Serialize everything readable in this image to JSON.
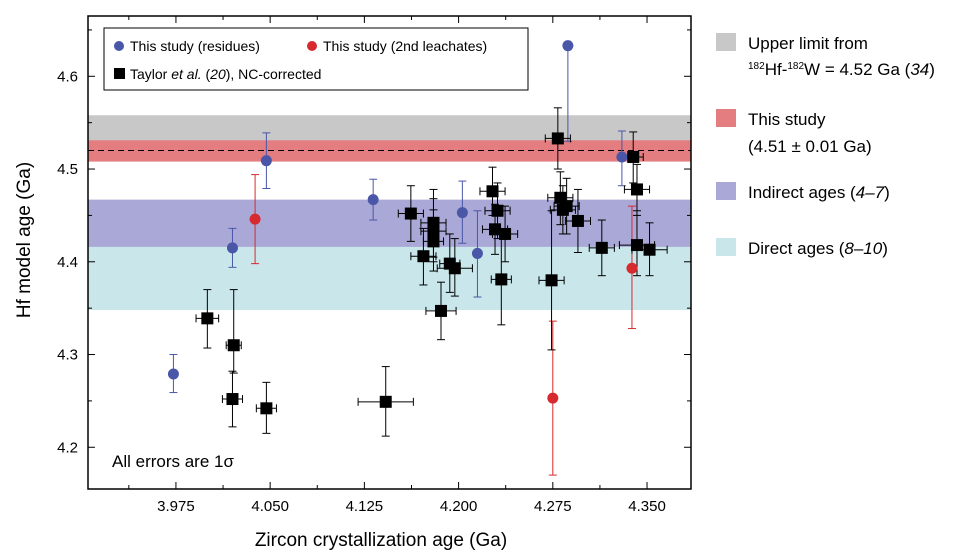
{
  "chart_data": {
    "type": "scatter",
    "xlabel": "Zircon crystallization age (Ga)",
    "ylabel": "Hf model age (Ga)",
    "xlim": [
      3.905,
      4.385
    ],
    "ylim": [
      4.155,
      4.665
    ],
    "xticks": [
      3.975,
      4.05,
      4.125,
      4.2,
      4.275,
      4.35
    ],
    "xtick_labels": [
      "3.975",
      "4.050",
      "4.125",
      "4.200",
      "4.275",
      "4.350"
    ],
    "yticks": [
      4.2,
      4.3,
      4.4,
      4.5,
      4.6
    ],
    "ytick_labels": [
      "4.2",
      "4.3",
      "4.4",
      "4.5",
      "4.6"
    ],
    "annotation": "All errors are 1σ",
    "reference_line": 4.52,
    "bands": [
      {
        "key": "upper",
        "y0": 4.52,
        "y1": 4.558,
        "color": "#c8c8c8",
        "label_line1": "Upper limit from",
        "label_sup1": "182",
        "label_mid": "Hf-",
        "label_sup2": "182",
        "label_rest": "W = 4.52 Ga (",
        "label_cite": "34",
        "label_close": ")"
      },
      {
        "key": "this",
        "y0": 4.508,
        "y1": 4.531,
        "color": "#e47d80",
        "label_line1": "This study",
        "label_line2": "(4.51 ± 0.01 Ga)"
      },
      {
        "key": "indirect",
        "y0": 4.416,
        "y1": 4.467,
        "color": "#a9a8d6",
        "label_line1": "Indirect ages (",
        "label_cite": "4–7",
        "label_close": ")"
      },
      {
        "key": "direct",
        "y0": 4.348,
        "y1": 4.416,
        "color": "#c9e6ea",
        "label_line1": "Direct ages (",
        "label_cite": "8–10",
        "label_close": ")"
      }
    ],
    "legend": {
      "residues": "This study (residues)",
      "leachates": "This study (2nd leachates)",
      "taylor_pre": "Taylor ",
      "taylor_etal": "et al.",
      "taylor_mid": " (",
      "taylor_cite": "20",
      "taylor_post": "), NC-corrected"
    },
    "series": [
      {
        "name": "This study (residues)",
        "color": "#4a56a8",
        "marker": "circle",
        "points": [
          {
            "x": 3.973,
            "y": 4.279,
            "lo": 4.259,
            "hi": 4.3
          },
          {
            "x": 4.02,
            "y": 4.415,
            "lo": 4.394,
            "hi": 4.436
          },
          {
            "x": 4.047,
            "y": 4.509,
            "lo": 4.479,
            "hi": 4.539
          },
          {
            "x": 4.132,
            "y": 4.467,
            "lo": 4.445,
            "hi": 4.489
          },
          {
            "x": 4.203,
            "y": 4.453,
            "lo": 4.42,
            "hi": 4.487
          },
          {
            "x": 4.215,
            "y": 4.409,
            "lo": 4.362,
            "hi": 4.455
          },
          {
            "x": 4.287,
            "y": 4.633,
            "lo": 4.53,
            "hi": 4.633
          },
          {
            "x": 4.33,
            "y": 4.513,
            "lo": 4.482,
            "hi": 4.541
          }
        ]
      },
      {
        "name": "This study (2nd leachates)",
        "color": "#d62a2e",
        "marker": "circle",
        "points": [
          {
            "x": 4.038,
            "y": 4.446,
            "lo": 4.398,
            "hi": 4.494
          },
          {
            "x": 4.275,
            "y": 4.253,
            "lo": 4.17,
            "hi": 4.336
          },
          {
            "x": 4.338,
            "y": 4.393,
            "lo": 4.328,
            "hi": 4.46
          }
        ]
      },
      {
        "name": "Taylor et al. (20), NC-corrected",
        "color": "#000000",
        "marker": "square",
        "points": [
          {
            "x": 4.0,
            "y": 4.339,
            "xe": 0.009,
            "lo": 4.307,
            "hi": 4.37
          },
          {
            "x": 4.021,
            "y": 4.31,
            "xe": 0.006,
            "lo": 4.28,
            "hi": 4.37
          },
          {
            "x": 4.02,
            "y": 4.252,
            "xe": 0.008,
            "lo": 4.222,
            "hi": 4.282
          },
          {
            "x": 4.047,
            "y": 4.242,
            "xe": 0.008,
            "lo": 4.215,
            "hi": 4.27
          },
          {
            "x": 4.142,
            "y": 4.249,
            "xe": 0.022,
            "lo": 4.212,
            "hi": 4.287
          },
          {
            "x": 4.162,
            "y": 4.452,
            "xe": 0.01,
            "lo": 4.422,
            "hi": 4.482
          },
          {
            "x": 4.172,
            "y": 4.406,
            "xe": 0.01,
            "lo": 4.375,
            "hi": 4.436
          },
          {
            "x": 4.18,
            "y": 4.442,
            "xe": 0.01,
            "lo": 4.405,
            "hi": 4.478
          },
          {
            "x": 4.18,
            "y": 4.433,
            "xe": 0.01,
            "lo": 4.4,
            "hi": 4.468
          },
          {
            "x": 4.18,
            "y": 4.422,
            "xe": 0.008,
            "lo": 4.39,
            "hi": 4.456
          },
          {
            "x": 4.186,
            "y": 4.347,
            "xe": 0.012,
            "lo": 4.316,
            "hi": 4.378
          },
          {
            "x": 4.193,
            "y": 4.398,
            "xe": 0.008,
            "lo": 4.367,
            "hi": 4.43
          },
          {
            "x": 4.197,
            "y": 4.393,
            "xe": 0.014,
            "lo": 4.363,
            "hi": 4.425
          },
          {
            "x": 4.227,
            "y": 4.476,
            "xe": 0.01,
            "lo": 4.45,
            "hi": 4.502
          },
          {
            "x": 4.229,
            "y": 4.435,
            "xe": 0.01,
            "lo": 4.408,
            "hi": 4.462
          },
          {
            "x": 4.231,
            "y": 4.455,
            "xe": 0.01,
            "lo": 4.425,
            "hi": 4.485
          },
          {
            "x": 4.234,
            "y": 4.381,
            "xe": 0.008,
            "lo": 4.332,
            "hi": 4.432
          },
          {
            "x": 4.237,
            "y": 4.43,
            "xe": 0.01,
            "lo": 4.4,
            "hi": 4.46
          },
          {
            "x": 4.274,
            "y": 4.38,
            "xe": 0.01,
            "lo": 4.305,
            "hi": 4.455
          },
          {
            "x": 4.279,
            "y": 4.533,
            "xe": 0.01,
            "lo": 4.5,
            "hi": 4.566
          },
          {
            "x": 4.281,
            "y": 4.469,
            "xe": 0.01,
            "lo": 4.44,
            "hi": 4.497
          },
          {
            "x": 4.283,
            "y": 4.456,
            "xe": 0.01,
            "lo": 4.43,
            "hi": 4.482
          },
          {
            "x": 4.286,
            "y": 4.46,
            "xe": 0.01,
            "lo": 4.43,
            "hi": 4.49
          },
          {
            "x": 4.295,
            "y": 4.444,
            "xe": 0.01,
            "lo": 4.41,
            "hi": 4.478
          },
          {
            "x": 4.314,
            "y": 4.415,
            "xe": 0.01,
            "lo": 4.385,
            "hi": 4.445
          },
          {
            "x": 4.339,
            "y": 4.513,
            "xe": 0.008,
            "lo": 4.485,
            "hi": 4.54
          },
          {
            "x": 4.342,
            "y": 4.478,
            "xe": 0.01,
            "lo": 4.45,
            "hi": 4.505
          },
          {
            "x": 4.342,
            "y": 4.418,
            "xe": 0.014,
            "lo": 4.385,
            "hi": 4.455
          },
          {
            "x": 4.352,
            "y": 4.413,
            "xe": 0.014,
            "lo": 4.385,
            "hi": 4.442
          }
        ]
      }
    ]
  }
}
